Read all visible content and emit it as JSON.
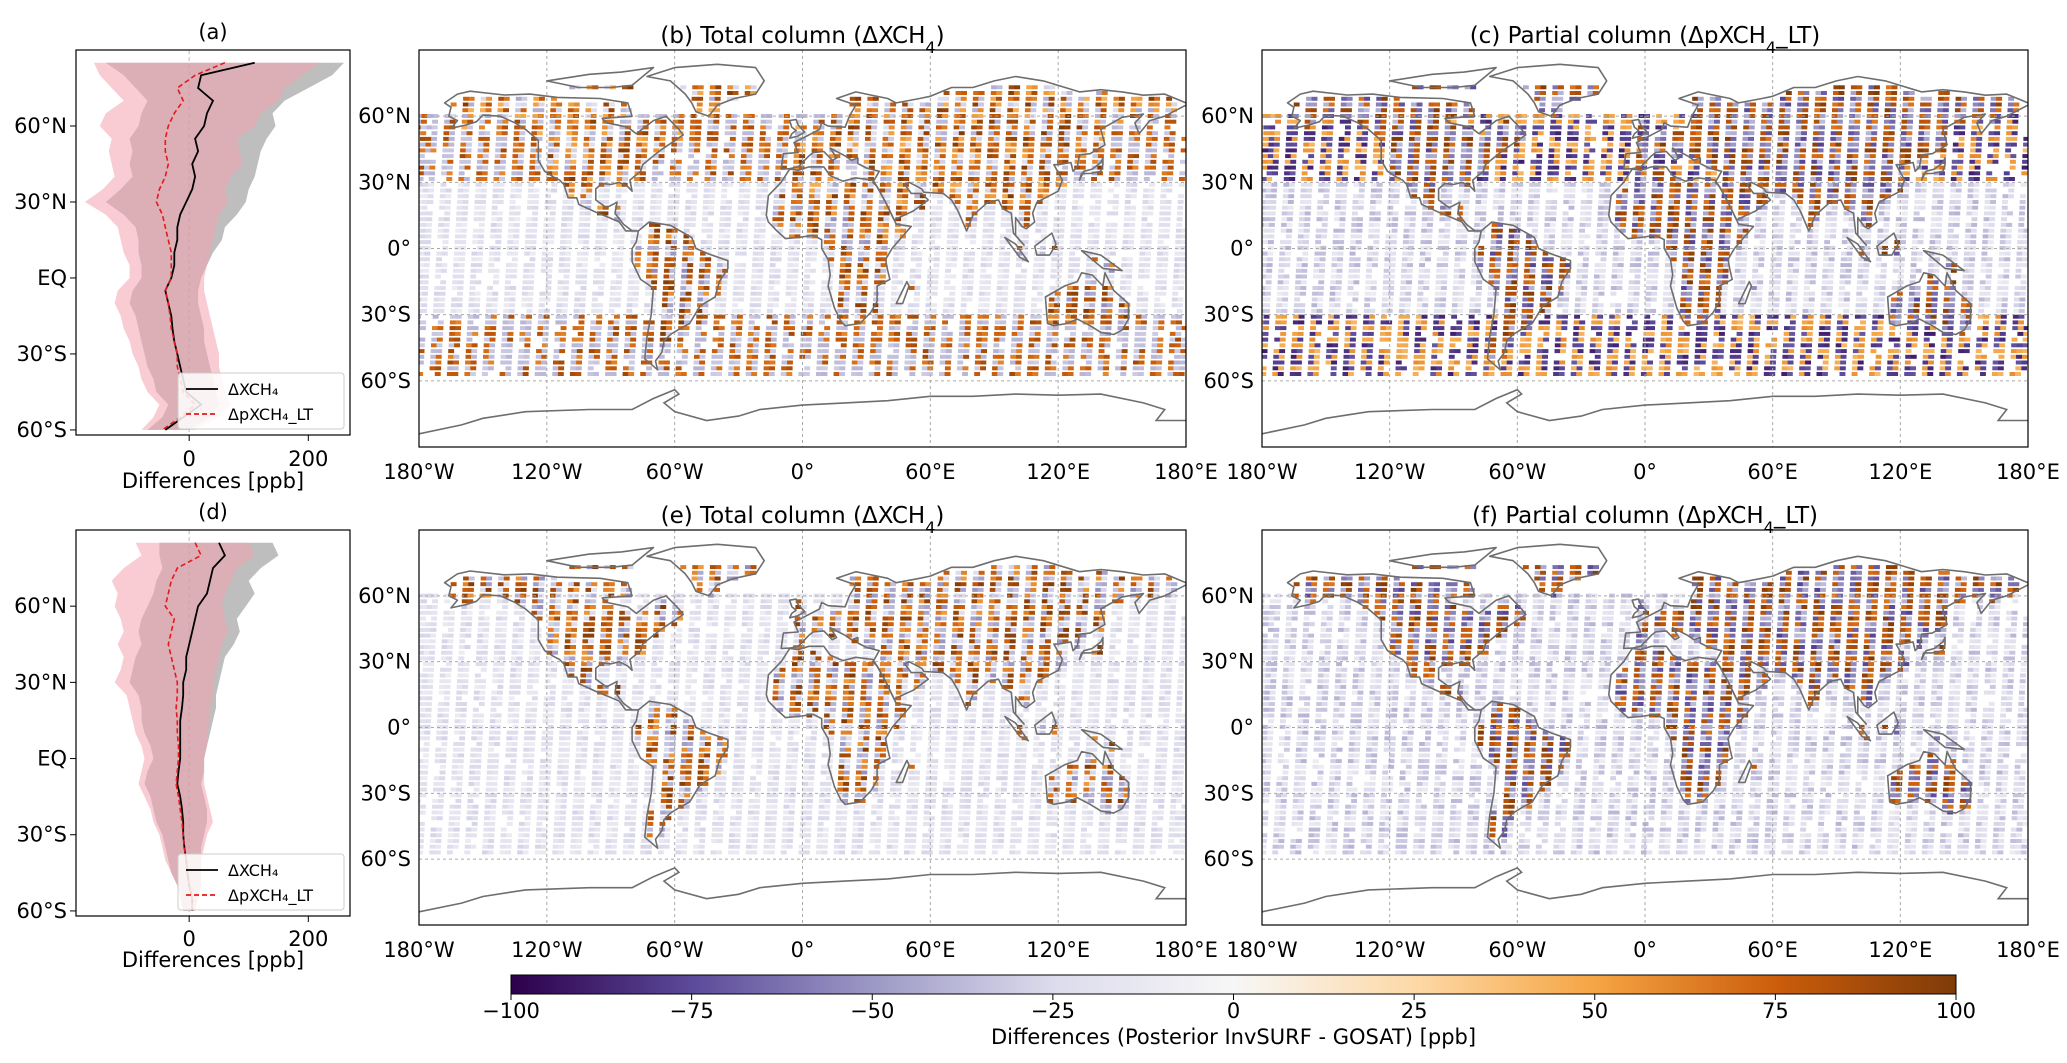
{
  "colorbar": {
    "label": "Differences (Posterior InvSURF - GOSAT) [ppb]",
    "ticks": [
      "−100",
      "−75",
      "−50",
      "−25",
      "0",
      "25",
      "50",
      "75",
      "100"
    ],
    "range": [
      -100,
      100
    ],
    "colors": [
      "#2d004b",
      "#5b4a99",
      "#9c98c5",
      "#dcdbec",
      "#f7f7f7",
      "#fdd9a7",
      "#f5a544",
      "#cc5d0b",
      "#7f3b08"
    ]
  },
  "chart_data": [
    {
      "panel": "a",
      "type": "line",
      "title": "(a)",
      "xlabel": "Differences [ppb]",
      "xticks": [
        "0",
        "200"
      ],
      "yticks": [
        "60°N",
        "30°N",
        "EQ",
        "30°S",
        "60°S"
      ],
      "xlim": [
        -190,
        270
      ],
      "ylim": [
        -62,
        90
      ],
      "legend_location": "bottom-right",
      "lat": [
        85,
        80,
        75,
        70,
        65,
        60,
        55,
        50,
        45,
        40,
        35,
        30,
        25,
        20,
        15,
        10,
        5,
        0,
        -5,
        -10,
        -15,
        -20,
        -25,
        -30,
        -35,
        -40,
        -45,
        -50,
        -55,
        -60
      ],
      "series": [
        {
          "name": "ΔXCH₄",
          "color": "#000000",
          "mean": [
            110,
            20,
            15,
            40,
            30,
            25,
            10,
            15,
            5,
            10,
            5,
            -5,
            -15,
            -20,
            -20,
            -25,
            -25,
            -30,
            -40,
            -35,
            -30,
            -28,
            -25,
            -20,
            -15,
            -10,
            -5,
            20,
            -10,
            -40
          ],
          "lower": [
            -140,
            -110,
            -90,
            -70,
            -80,
            -85,
            -100,
            -95,
            -100,
            -95,
            -115,
            -140,
            -110,
            -90,
            -85,
            -85,
            -80,
            -80,
            -95,
            -100,
            -90,
            -85,
            -80,
            -75,
            -70,
            -60,
            -55,
            -35,
            -45,
            -70
          ],
          "upper": [
            260,
            240,
            200,
            160,
            140,
            145,
            130,
            120,
            115,
            110,
            100,
            95,
            80,
            60,
            55,
            40,
            30,
            20,
            15,
            15,
            20,
            25,
            25,
            30,
            35,
            40,
            45,
            50,
            35,
            0
          ]
        },
        {
          "name": "ΔpXCH₄_LT",
          "color": "#e31a1c",
          "mean": [
            60,
            10,
            -20,
            -10,
            -25,
            -35,
            -40,
            -40,
            -35,
            -40,
            -50,
            -55,
            -45,
            -40,
            -35,
            -30,
            -30,
            -30,
            -40,
            -35,
            -32,
            -30,
            -25,
            -20,
            -20,
            -15,
            -10,
            10,
            -15,
            -45
          ],
          "lower": [
            -160,
            -150,
            -130,
            -110,
            -140,
            -150,
            -130,
            -135,
            -130,
            -125,
            -145,
            -175,
            -140,
            -120,
            -115,
            -110,
            -100,
            -100,
            -120,
            -125,
            -115,
            -110,
            -100,
            -95,
            -85,
            -80,
            -70,
            -50,
            -60,
            -80
          ],
          "upper": [
            220,
            190,
            160,
            150,
            120,
            110,
            80,
            85,
            90,
            70,
            60,
            65,
            50,
            45,
            40,
            35,
            30,
            25,
            25,
            30,
            35,
            40,
            45,
            50,
            50,
            55,
            60,
            70,
            50,
            10
          ]
        }
      ]
    },
    {
      "panel": "b",
      "type": "heatmap",
      "title_prefix": "(b) Total column (ΔXCH",
      "title_sub": "4",
      "title_suffix": ")",
      "xticks": [
        "180°W",
        "120°W",
        "60°W",
        "0°",
        "60°E",
        "120°E",
        "180°E"
      ],
      "yticks": [
        "60°N",
        "30°N",
        "0°",
        "30°S",
        "60°S"
      ],
      "xlim": [
        -180,
        180
      ],
      "ylim": [
        -90,
        90
      ],
      "grid": "dashed",
      "value_range": [
        -100,
        100
      ]
    },
    {
      "panel": "c",
      "type": "heatmap",
      "title_prefix": "(c) Partial column (ΔpXCH",
      "title_sub": "4",
      "title_suffix": "_LT)",
      "xticks": [
        "180°W",
        "120°W",
        "60°W",
        "0°",
        "60°E",
        "120°E",
        "180°E"
      ],
      "yticks": [
        "60°N",
        "30°N",
        "0°",
        "30°S",
        "60°S"
      ],
      "xlim": [
        -180,
        180
      ],
      "ylim": [
        -90,
        90
      ],
      "grid": "dashed",
      "value_range": [
        -100,
        100
      ]
    },
    {
      "panel": "d",
      "type": "line",
      "title": "(d)",
      "xlabel": "Differences [ppb]",
      "xticks": [
        "0",
        "200"
      ],
      "yticks": [
        "60°N",
        "30°N",
        "EQ",
        "30°S",
        "60°S"
      ],
      "xlim": [
        -190,
        270
      ],
      "ylim": [
        -62,
        90
      ],
      "legend_location": "bottom-right",
      "lat": [
        85,
        80,
        75,
        70,
        65,
        60,
        55,
        50,
        45,
        40,
        35,
        30,
        25,
        20,
        15,
        10,
        5,
        0,
        -5,
        -10,
        -15,
        -20,
        -25,
        -30,
        -35,
        -40,
        -45,
        -50,
        -55,
        -60
      ],
      "series": [
        {
          "name": "ΔXCH₄",
          "color": "#000000",
          "mean": [
            50,
            60,
            40,
            35,
            30,
            15,
            10,
            5,
            0,
            -5,
            -5,
            -10,
            -10,
            -12,
            -15,
            -15,
            -15,
            -15,
            -18,
            -20,
            -15,
            -12,
            -10,
            -10,
            -8,
            -5,
            -3,
            0,
            5,
            5
          ],
          "lower": [
            -50,
            -50,
            -45,
            -55,
            -60,
            -70,
            -80,
            -85,
            -80,
            -90,
            -95,
            -100,
            -85,
            -80,
            -80,
            -75,
            -65,
            -60,
            -70,
            -75,
            -65,
            -60,
            -55,
            -45,
            -40,
            -35,
            -30,
            -20,
            -15,
            -10
          ],
          "upper": [
            140,
            150,
            120,
            100,
            110,
            95,
            80,
            85,
            75,
            60,
            55,
            50,
            45,
            45,
            40,
            35,
            30,
            25,
            25,
            20,
            25,
            30,
            30,
            25,
            20,
            20,
            20,
            20,
            15,
            10
          ]
        },
        {
          "name": "ΔpXCH₄_LT",
          "color": "#e31a1c",
          "mean": [
            10,
            20,
            -20,
            -30,
            -35,
            -40,
            -25,
            -30,
            -35,
            -30,
            -25,
            -20,
            -20,
            -22,
            -20,
            -20,
            -18,
            -18,
            -20,
            -22,
            -18,
            -15,
            -12,
            -10,
            -8,
            -5,
            -2,
            0,
            5,
            5
          ],
          "lower": [
            -90,
            -80,
            -110,
            -130,
            -120,
            -125,
            -115,
            -110,
            -120,
            -110,
            -115,
            -125,
            -105,
            -100,
            -95,
            -90,
            -80,
            -75,
            -80,
            -85,
            -75,
            -65,
            -60,
            -50,
            -45,
            -40,
            -30,
            -20,
            -15,
            -10
          ],
          "upper": [
            100,
            110,
            80,
            70,
            60,
            55,
            60,
            65,
            55,
            50,
            45,
            40,
            40,
            35,
            35,
            30,
            30,
            25,
            25,
            25,
            30,
            35,
            40,
            30,
            25,
            20,
            20,
            20,
            15,
            10
          ]
        }
      ]
    },
    {
      "panel": "e",
      "type": "heatmap",
      "title_prefix": "(e) Total column (ΔXCH",
      "title_sub": "4",
      "title_suffix": ")",
      "xticks": [
        "180°W",
        "120°W",
        "60°W",
        "0°",
        "60°E",
        "120°E",
        "180°E"
      ],
      "yticks": [
        "60°N",
        "30°N",
        "0°",
        "30°S",
        "60°S"
      ],
      "xlim": [
        -180,
        180
      ],
      "ylim": [
        -90,
        90
      ],
      "grid": "dashed",
      "value_range": [
        -100,
        100
      ]
    },
    {
      "panel": "f",
      "type": "heatmap",
      "title_prefix": "(f) Partial column (ΔpXCH",
      "title_sub": "4",
      "title_suffix": "_LT)",
      "xticks": [
        "180°W",
        "120°W",
        "60°W",
        "0°",
        "60°E",
        "120°E",
        "180°E"
      ],
      "yticks": [
        "60°N",
        "30°N",
        "0°",
        "30°S",
        "60°S"
      ],
      "xlim": [
        -180,
        180
      ],
      "ylim": [
        -90,
        90
      ],
      "grid": "dashed",
      "value_range": [
        -100,
        100
      ]
    }
  ]
}
